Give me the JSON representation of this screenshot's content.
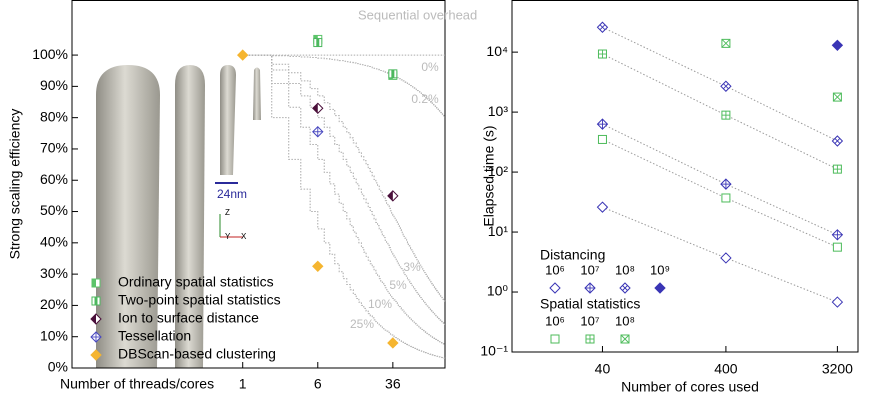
{
  "chart_data": [
    {
      "type": "scatter",
      "ylabel": "Strong scaling efficiency",
      "xlabel": "Number of threads/cores",
      "xlog": true,
      "xlim": [
        0.017,
        125
      ],
      "xticks": [
        1,
        6,
        36
      ],
      "ylim": [
        0,
        117.6
      ],
      "yticks": [
        {
          "value": 0,
          "label": "0%"
        },
        {
          "value": 10,
          "label": "10%"
        },
        {
          "value": 20,
          "label": "20%"
        },
        {
          "value": 30,
          "label": "30%"
        },
        {
          "value": 40,
          "label": "40%"
        },
        {
          "value": 50,
          "label": "50%"
        },
        {
          "value": 60,
          "label": "60%"
        },
        {
          "value": 70,
          "label": "70%"
        },
        {
          "value": 80,
          "label": "80%"
        },
        {
          "value": 90,
          "label": "90%"
        },
        {
          "value": 100,
          "label": "100%"
        }
      ],
      "series": [
        {
          "name": "Ordinary spatial statistics",
          "color": "#5cc46a",
          "marker": "square-half",
          "x": [
            6,
            36
          ],
          "values": [
            105,
            93.5
          ]
        },
        {
          "name": "Two-point spatial statistics",
          "color": "#4cb85e",
          "marker": "square-mid",
          "x": [
            6,
            36
          ],
          "values": [
            104,
            94
          ]
        },
        {
          "name": "Ion to surface distance",
          "color": "#4a0f3a",
          "marker": "diamond-half",
          "x": [
            6,
            36
          ],
          "values": [
            83,
            55
          ]
        },
        {
          "name": "Tessellation",
          "color": "#4848c0",
          "marker": "diamond-plus",
          "x": [
            6
          ],
          "values": [
            75.5
          ]
        },
        {
          "name": "DBScan-based clustering",
          "color": "#f5b530",
          "marker": "diamond-filled",
          "x": [
            1,
            6,
            36
          ],
          "values": [
            100,
            32.5,
            8
          ]
        }
      ],
      "overhead": {
        "title": "Sequential overhead",
        "curves": [
          {
            "label": "0%",
            "value": 0
          },
          {
            "label": "0.2%",
            "value": 0.2
          },
          {
            "label": "3%",
            "value": 3
          },
          {
            "label": "5%",
            "value": 5
          },
          {
            "label": "10%",
            "value": 10
          },
          {
            "label": "25%",
            "value": 25
          }
        ]
      },
      "scale_bar": "24nm",
      "triad": [
        "Z",
        "Y",
        "X"
      ]
    },
    {
      "type": "scatter",
      "ylabel": "Elapsed time (s)",
      "xlabel": "Number of cores used",
      "xlog": true,
      "xlim": [
        7.4,
        4700
      ],
      "xticks": [
        40,
        400,
        3200
      ],
      "ylog": true,
      "ylim": [
        0.1,
        74000
      ],
      "yticks": [
        {
          "value": 0.1,
          "label": "10⁻¹"
        },
        {
          "value": 1,
          "label": "10⁰"
        },
        {
          "value": 10,
          "label": "10¹"
        },
        {
          "value": 100,
          "label": "10²"
        },
        {
          "value": 1000,
          "label": "10³"
        },
        {
          "value": 10000,
          "label": "10⁴"
        }
      ],
      "legend_groups": [
        {
          "title": "Distancing",
          "color": "#3a35b5"
        },
        {
          "title": "Spatial statistics",
          "color": "#4cbb5a"
        }
      ],
      "series": [
        {
          "name": "10⁶",
          "group": 0,
          "color": "#3a35b5",
          "marker": "diamond",
          "trend": true,
          "x": [
            40,
            400,
            3200
          ],
          "values": [
            26,
            3.7,
            0.68
          ]
        },
        {
          "name": "10⁷",
          "group": 0,
          "color": "#3a35b5",
          "marker": "diamond-plus",
          "trend": true,
          "x": [
            40,
            400,
            3200
          ],
          "values": [
            630,
            63,
            9
          ]
        },
        {
          "name": "10⁸",
          "group": 0,
          "color": "#3a35b5",
          "marker": "diamond-x",
          "trend": true,
          "x": [
            40,
            400,
            3200
          ],
          "values": [
            26000,
            2700,
            330
          ]
        },
        {
          "name": "10⁹",
          "group": 0,
          "color": "#3a35b5",
          "marker": "diamond-filled",
          "trend": false,
          "x": [
            3200
          ],
          "values": [
            13000
          ]
        },
        {
          "name": "10⁶",
          "group": 1,
          "color": "#4cbb5a",
          "marker": "square",
          "trend": true,
          "x": [
            40,
            400,
            3200
          ],
          "values": [
            350,
            37,
            5.6
          ]
        },
        {
          "name": "10⁷",
          "group": 1,
          "color": "#4cbb5a",
          "marker": "square-plus",
          "trend": true,
          "x": [
            40,
            400,
            3200
          ],
          "values": [
            9300,
            890,
            112
          ]
        },
        {
          "name": "10⁸",
          "group": 1,
          "color": "#4cbb5a",
          "marker": "square-x",
          "trend": false,
          "x": [
            400,
            3200
          ],
          "values": [
            14000,
            1780
          ]
        }
      ]
    }
  ]
}
